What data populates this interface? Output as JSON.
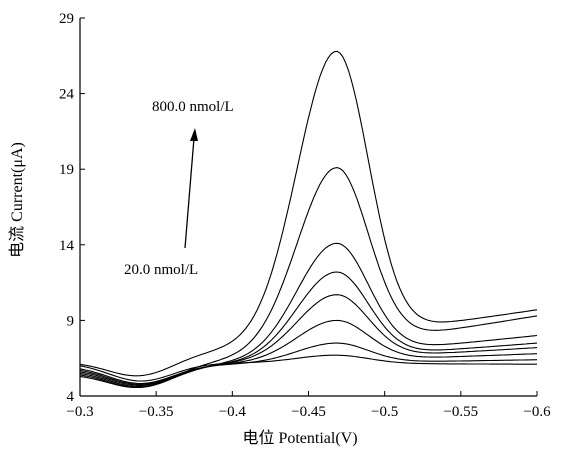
{
  "chart_data": {
    "type": "line",
    "title": "",
    "xlabel": "电位 Potential(V)",
    "ylabel": "电流 Current(μA)",
    "xlim": [
      -0.3,
      -0.6
    ],
    "ylim": [
      4,
      29
    ],
    "x_axis_reversed": true,
    "xticks": [
      -0.3,
      -0.35,
      -0.4,
      -0.45,
      -0.5,
      -0.55,
      -0.6
    ],
    "xtick_labels": [
      "−0.3",
      "−0.35",
      "−0.4",
      "−0.45",
      "−0.5",
      "−0.55",
      "−0.6"
    ],
    "yticks": [
      4,
      9,
      14,
      19,
      24,
      29
    ],
    "ytick_labels": [
      "4",
      "9",
      "14",
      "19",
      "24",
      "29"
    ],
    "grid": false,
    "legend": "none",
    "line_color": "#000000",
    "series": [
      {
        "base_start": 6.2,
        "base_end": 6.1,
        "peak": 6.7
      },
      {
        "base_start": 6.0,
        "base_end": 6.4,
        "peak": 7.5
      },
      {
        "base_start": 5.9,
        "base_end": 6.8,
        "peak": 9.0
      },
      {
        "base_start": 5.8,
        "base_end": 7.2,
        "peak": 10.7
      },
      {
        "base_start": 5.7,
        "base_end": 7.5,
        "peak": 12.2
      },
      {
        "base_start": 5.6,
        "base_end": 8.0,
        "peak": 14.1
      },
      {
        "base_start": 5.5,
        "base_end": 9.3,
        "peak": 19.1
      },
      {
        "base_start": 6.3,
        "base_end": 9.7,
        "peak": 26.8
      }
    ],
    "peak_potential": -0.468,
    "annotations": [
      {
        "text": "800.0 nmol/L"
      },
      {
        "text": "20.0 nmol/L"
      }
    ]
  }
}
